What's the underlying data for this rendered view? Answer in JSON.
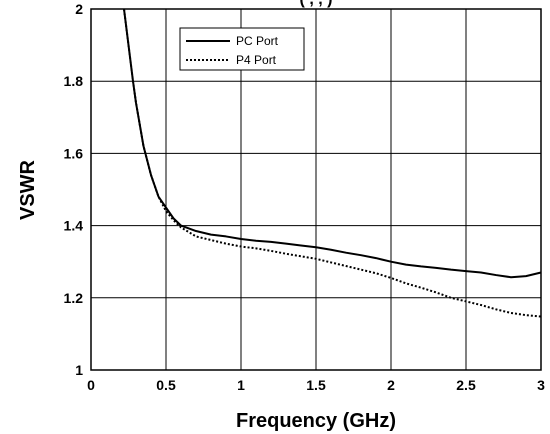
{
  "chart_data": {
    "type": "line",
    "title_partial": "(                ,              ,               )",
    "xlabel": "Frequency (GHz)",
    "ylabel": "VSWR",
    "xlim": [
      0,
      3
    ],
    "ylim": [
      1,
      2
    ],
    "xticks": [
      0,
      0.5,
      1,
      1.5,
      2,
      2.5,
      3
    ],
    "xtick_labels": [
      "0",
      "0.5",
      "1",
      "1.5",
      "2",
      "2.5",
      "3"
    ],
    "yticks": [
      1,
      1.2,
      1.4,
      1.6,
      1.8,
      2
    ],
    "ytick_labels": [
      "1",
      "1.2",
      "1.4",
      "1.6",
      "1.8",
      "2"
    ],
    "grid": true,
    "legend_position": "top-left",
    "series": [
      {
        "name": "PC Port",
        "style": "solid",
        "x": [
          0.22,
          0.25,
          0.28,
          0.3,
          0.35,
          0.4,
          0.45,
          0.5,
          0.55,
          0.6,
          0.7,
          0.8,
          0.9,
          1.0,
          1.1,
          1.2,
          1.3,
          1.4,
          1.5,
          1.6,
          1.7,
          1.8,
          1.9,
          2.0,
          2.1,
          2.2,
          2.3,
          2.4,
          2.5,
          2.6,
          2.7,
          2.8,
          2.9,
          3.0
        ],
        "y": [
          2.0,
          1.9,
          1.8,
          1.74,
          1.62,
          1.54,
          1.48,
          1.45,
          1.42,
          1.4,
          1.385,
          1.375,
          1.37,
          1.363,
          1.358,
          1.355,
          1.35,
          1.345,
          1.34,
          1.333,
          1.325,
          1.318,
          1.31,
          1.3,
          1.292,
          1.287,
          1.283,
          1.278,
          1.274,
          1.27,
          1.263,
          1.257,
          1.26,
          1.27
        ]
      },
      {
        "name": "P4 Port",
        "style": "dashed",
        "x": [
          0.22,
          0.25,
          0.28,
          0.3,
          0.35,
          0.4,
          0.45,
          0.5,
          0.55,
          0.6,
          0.7,
          0.8,
          0.9,
          1.0,
          1.1,
          1.2,
          1.3,
          1.4,
          1.5,
          1.6,
          1.7,
          1.8,
          1.9,
          2.0,
          2.1,
          2.2,
          2.3,
          2.4,
          2.5,
          2.6,
          2.7,
          2.8,
          2.9,
          3.0
        ],
        "y": [
          2.0,
          1.9,
          1.8,
          1.74,
          1.62,
          1.54,
          1.48,
          1.44,
          1.415,
          1.395,
          1.37,
          1.36,
          1.35,
          1.342,
          1.337,
          1.33,
          1.322,
          1.315,
          1.308,
          1.298,
          1.288,
          1.278,
          1.268,
          1.255,
          1.24,
          1.228,
          1.215,
          1.2,
          1.19,
          1.18,
          1.168,
          1.158,
          1.152,
          1.148
        ]
      }
    ]
  }
}
